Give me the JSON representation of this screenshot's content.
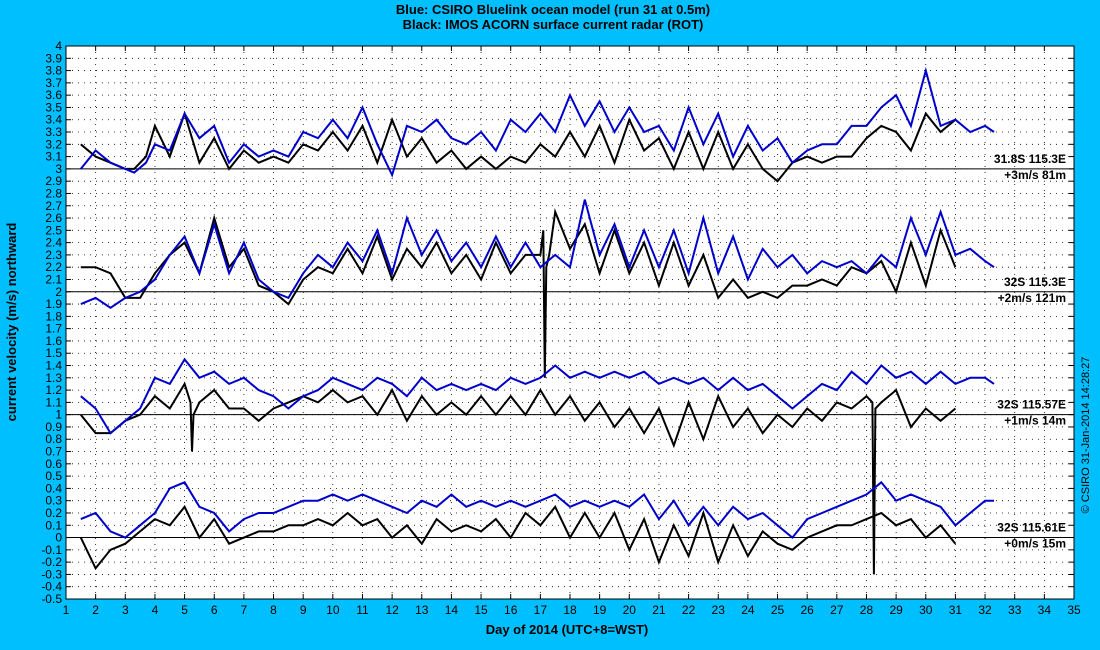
{
  "chart_data": {
    "type": "line",
    "title": "Blue: CSIRO Bluelink ocean model (run 31 at 0.5m)",
    "subtitle": "Black: IMOS ACORN surface current radar (ROT)",
    "xlabel": "Day of 2014 (UTC+8=WST)",
    "ylabel": "current velocity (m/s) northward",
    "credit": "© CSIRO 31-Jan-2014 14:28:27",
    "xlim": [
      1,
      35
    ],
    "ylim": [
      -0.5,
      4
    ],
    "xticks": [
      "1",
      "2",
      "3",
      "4",
      "5",
      "6",
      "7",
      "8",
      "9",
      "10",
      "11",
      "12",
      "13",
      "14",
      "15",
      "16",
      "17",
      "18",
      "19",
      "20",
      "21",
      "22",
      "23",
      "24",
      "25",
      "26",
      "27",
      "28",
      "29",
      "30",
      "31",
      "32",
      "33",
      "34",
      "35"
    ],
    "yticks": [
      "-0.5",
      "-0.4",
      "-0.3",
      "-0.2",
      "-0.1",
      "0",
      "0.1",
      "0.2",
      "0.3",
      "0.4",
      "0.5",
      "0.6",
      "0.7",
      "0.8",
      "0.9",
      "1",
      "1.1",
      "1.2",
      "1.3",
      "1.4",
      "1.5",
      "1.6",
      "1.7",
      "1.8",
      "1.9",
      "2",
      "2.1",
      "2.2",
      "2.3",
      "2.4",
      "2.5",
      "2.6",
      "2.7",
      "2.8",
      "2.9",
      "3",
      "3.1",
      "3.2",
      "3.3",
      "3.4",
      "3.5",
      "3.6",
      "3.7",
      "3.8",
      "3.9",
      "4"
    ],
    "grid": true,
    "colors": {
      "model": "#0000cc",
      "radar": "#000000",
      "background": "#00bfff"
    },
    "stations": [
      {
        "label": "31.8S 115.3E",
        "offset_label": "+3m/s 81m",
        "offset": 3,
        "model": {
          "x": [
            1.5,
            2,
            2.5,
            3,
            3.3,
            3.7,
            4,
            4.5,
            5,
            5.5,
            6,
            6.5,
            7,
            7.5,
            8,
            8.5,
            9,
            9.5,
            10,
            10.5,
            11,
            11.5,
            12,
            12.5,
            13,
            13.5,
            14,
            14.5,
            15,
            15.5,
            16,
            16.5,
            17,
            17.5,
            18,
            18.5,
            19,
            19.5,
            20,
            20.5,
            21,
            21.5,
            22,
            22.5,
            23,
            23.5,
            24,
            24.5,
            25,
            25.5,
            26,
            26.5,
            27,
            27.5,
            28,
            28.5,
            29,
            29.5,
            30,
            30.5,
            31,
            31.5,
            32,
            32.3
          ],
          "y": [
            3.0,
            3.15,
            3.05,
            3.0,
            2.97,
            3.05,
            3.2,
            3.15,
            3.45,
            3.25,
            3.35,
            3.05,
            3.2,
            3.1,
            3.15,
            3.1,
            3.3,
            3.25,
            3.4,
            3.25,
            3.5,
            3.2,
            2.95,
            3.35,
            3.3,
            3.4,
            3.25,
            3.2,
            3.3,
            3.15,
            3.4,
            3.3,
            3.45,
            3.3,
            3.6,
            3.35,
            3.55,
            3.3,
            3.5,
            3.3,
            3.35,
            3.15,
            3.5,
            3.2,
            3.45,
            3.1,
            3.35,
            3.15,
            3.25,
            3.05,
            3.15,
            3.2,
            3.2,
            3.35,
            3.35,
            3.5,
            3.6,
            3.35,
            3.8,
            3.35,
            3.4,
            3.3,
            3.35,
            3.3
          ]
        },
        "radar": {
          "x": [
            1.5,
            2,
            2.5,
            3,
            3.3,
            3.7,
            4,
            4.5,
            5,
            5.5,
            6,
            6.5,
            7,
            7.5,
            8,
            8.5,
            9,
            9.5,
            10,
            10.5,
            11,
            11.5,
            12,
            12.5,
            13,
            13.5,
            14,
            14.5,
            15,
            15.5,
            16,
            16.5,
            17,
            17.5,
            18,
            18.5,
            19,
            19.5,
            20,
            20.5,
            21,
            21.5,
            22,
            22.5,
            23,
            23.5,
            24,
            24.5,
            25,
            25.5,
            26,
            26.5,
            27,
            27.5,
            28,
            28.5,
            29,
            29.5,
            30,
            30.5,
            31
          ],
          "y": [
            3.2,
            3.1,
            3.05,
            3.0,
            3.0,
            3.1,
            3.35,
            3.1,
            3.45,
            3.05,
            3.25,
            3.0,
            3.15,
            3.05,
            3.1,
            3.05,
            3.2,
            3.15,
            3.3,
            3.15,
            3.35,
            3.05,
            3.4,
            3.1,
            3.25,
            3.05,
            3.15,
            3.0,
            3.1,
            3.0,
            3.1,
            3.05,
            3.2,
            3.1,
            3.3,
            3.1,
            3.35,
            3.05,
            3.4,
            3.15,
            3.25,
            3.0,
            3.3,
            3.0,
            3.3,
            3.0,
            3.2,
            3.0,
            2.9,
            3.05,
            3.1,
            3.05,
            3.1,
            3.1,
            3.25,
            3.35,
            3.3,
            3.15,
            3.45,
            3.3,
            3.4
          ]
        }
      },
      {
        "label": "32S 115.3E",
        "offset_label": "+2m/s 121m",
        "offset": 2,
        "model": {
          "x": [
            1.5,
            2,
            2.5,
            3,
            3.5,
            4,
            4.5,
            5,
            5.5,
            6,
            6.5,
            7,
            7.5,
            8,
            8.5,
            9,
            9.5,
            10,
            10.5,
            11,
            11.5,
            12,
            12.5,
            13,
            13.5,
            14,
            14.5,
            15,
            15.5,
            16,
            16.5,
            17,
            17.5,
            18,
            18.5,
            19,
            19.5,
            20,
            20.5,
            21,
            21.5,
            22,
            22.5,
            23,
            23.5,
            24,
            24.5,
            25,
            25.5,
            26,
            26.5,
            27,
            27.5,
            28,
            28.5,
            29,
            29.5,
            30,
            30.5,
            31,
            31.5,
            32,
            32.3
          ],
          "y": [
            1.9,
            1.95,
            1.87,
            1.95,
            2.0,
            2.1,
            2.3,
            2.45,
            2.15,
            2.55,
            2.15,
            2.4,
            2.1,
            2.0,
            1.95,
            2.15,
            2.3,
            2.2,
            2.4,
            2.25,
            2.5,
            2.15,
            2.6,
            2.3,
            2.5,
            2.25,
            2.4,
            2.2,
            2.45,
            2.2,
            2.4,
            2.2,
            2.3,
            2.2,
            2.75,
            2.3,
            2.55,
            2.2,
            2.5,
            2.2,
            2.5,
            2.15,
            2.6,
            2.15,
            2.45,
            2.1,
            2.35,
            2.2,
            2.3,
            2.15,
            2.25,
            2.2,
            2.25,
            2.15,
            2.3,
            2.2,
            2.6,
            2.3,
            2.65,
            2.3,
            2.35,
            2.25,
            2.2
          ]
        },
        "radar": {
          "x": [
            1.5,
            2,
            2.5,
            3,
            3.5,
            4,
            4.5,
            5,
            5.5,
            6,
            6.5,
            7,
            7.5,
            8,
            8.5,
            9,
            9.5,
            10,
            10.5,
            11,
            11.5,
            12,
            12.5,
            13,
            13.5,
            14,
            14.5,
            15,
            15.5,
            16,
            16.5,
            17,
            17.1,
            17.15,
            17.2,
            17.3,
            17.5,
            18,
            18.5,
            19,
            19.5,
            20,
            20.5,
            21,
            21.5,
            22,
            22.5,
            23,
            23.5,
            24,
            24.5,
            25,
            25.5,
            26,
            26.5,
            27,
            27.5,
            28,
            28.5,
            29,
            29.5,
            30,
            30.5,
            31
          ],
          "y": [
            2.2,
            2.2,
            2.15,
            1.95,
            1.95,
            2.15,
            2.3,
            2.4,
            2.15,
            2.6,
            2.2,
            2.35,
            2.05,
            2.0,
            1.9,
            2.1,
            2.2,
            2.15,
            2.35,
            2.15,
            2.45,
            2.1,
            2.35,
            2.2,
            2.4,
            2.15,
            2.3,
            2.1,
            2.4,
            2.15,
            2.3,
            2.3,
            2.5,
            1.3,
            2.2,
            2.3,
            2.65,
            2.35,
            2.55,
            2.15,
            2.5,
            2.15,
            2.4,
            2.05,
            2.4,
            2.05,
            2.3,
            1.95,
            2.1,
            1.95,
            2.0,
            1.95,
            2.05,
            2.05,
            2.1,
            2.05,
            2.2,
            2.15,
            2.25,
            2.0,
            2.4,
            2.05,
            2.5,
            2.2
          ]
        }
      },
      {
        "label": "32S 115.57E",
        "offset_label": "+1m/s 14m",
        "offset": 1,
        "model": {
          "x": [
            1.5,
            2,
            2.5,
            3,
            3.5,
            4,
            4.5,
            5,
            5.5,
            6,
            6.5,
            7,
            7.5,
            8,
            8.5,
            9,
            9.5,
            10,
            10.5,
            11,
            11.5,
            12,
            12.5,
            13,
            13.5,
            14,
            14.5,
            15,
            15.5,
            16,
            16.5,
            17,
            17.5,
            18,
            18.5,
            19,
            19.5,
            20,
            20.5,
            21,
            21.5,
            22,
            22.5,
            23,
            23.5,
            24,
            24.5,
            25,
            25.5,
            26,
            26.5,
            27,
            27.5,
            28,
            28.5,
            29,
            29.5,
            30,
            30.5,
            31,
            31.5,
            32,
            32.3
          ],
          "y": [
            1.15,
            1.05,
            0.85,
            0.95,
            1.05,
            1.3,
            1.25,
            1.45,
            1.3,
            1.35,
            1.25,
            1.3,
            1.2,
            1.15,
            1.05,
            1.15,
            1.2,
            1.3,
            1.25,
            1.2,
            1.3,
            1.25,
            1.15,
            1.3,
            1.2,
            1.25,
            1.2,
            1.25,
            1.2,
            1.3,
            1.25,
            1.3,
            1.4,
            1.3,
            1.35,
            1.3,
            1.35,
            1.3,
            1.35,
            1.25,
            1.3,
            1.25,
            1.3,
            1.2,
            1.3,
            1.2,
            1.25,
            1.15,
            1.05,
            1.15,
            1.25,
            1.2,
            1.35,
            1.25,
            1.4,
            1.3,
            1.35,
            1.25,
            1.35,
            1.25,
            1.3,
            1.3,
            1.25
          ]
        },
        "radar": {
          "x": [
            1.5,
            2,
            2.5,
            3,
            3.5,
            4,
            4.5,
            5,
            5.2,
            5.25,
            5.3,
            5.5,
            6,
            6.5,
            7,
            7.5,
            8,
            8.5,
            9,
            9.5,
            10,
            10.5,
            11,
            11.5,
            12,
            12.5,
            13,
            13.5,
            14,
            14.5,
            15,
            15.5,
            16,
            16.5,
            17,
            17.5,
            18,
            18.5,
            19,
            19.5,
            20,
            20.5,
            21,
            21.5,
            22,
            22.5,
            23,
            23.5,
            24,
            24.5,
            25,
            25.5,
            26,
            26.5,
            27,
            27.5,
            28,
            28.2,
            28.25,
            28.3,
            28.5,
            29,
            29.5,
            30,
            30.5,
            31
          ],
          "y": [
            1.0,
            0.85,
            0.85,
            0.95,
            1.0,
            1.15,
            1.05,
            1.25,
            1.1,
            0.7,
            1.0,
            1.1,
            1.2,
            1.05,
            1.05,
            0.95,
            1.05,
            1.1,
            1.15,
            1.1,
            1.2,
            1.1,
            1.15,
            1.0,
            1.2,
            0.95,
            1.15,
            1.0,
            1.1,
            1.0,
            1.15,
            1.0,
            1.15,
            1.0,
            1.2,
            1.0,
            1.15,
            0.95,
            1.1,
            0.9,
            1.05,
            0.85,
            1.05,
            0.75,
            1.1,
            0.8,
            1.15,
            0.9,
            1.05,
            0.85,
            1.0,
            0.9,
            1.05,
            0.95,
            1.1,
            1.05,
            1.15,
            1.1,
            -0.3,
            1.05,
            1.1,
            1.2,
            0.9,
            1.05,
            0.95,
            1.05
          ]
        }
      },
      {
        "label": "32S 115.61E",
        "offset_label": "+0m/s 15m",
        "offset": 0,
        "model": {
          "x": [
            1.5,
            2,
            2.5,
            3,
            3.5,
            4,
            4.5,
            5,
            5.5,
            6,
            6.5,
            7,
            7.5,
            8,
            8.5,
            9,
            9.5,
            10,
            10.5,
            11,
            11.5,
            12,
            12.5,
            13,
            13.5,
            14,
            14.5,
            15,
            15.5,
            16,
            16.5,
            17,
            17.5,
            18,
            18.5,
            19,
            19.5,
            20,
            20.5,
            21,
            21.5,
            22,
            22.5,
            23,
            23.5,
            24,
            24.5,
            25,
            25.5,
            26,
            26.5,
            27,
            27.5,
            28,
            28.5,
            29,
            29.5,
            30,
            30.5,
            31,
            31.5,
            32,
            32.3
          ],
          "y": [
            0.15,
            0.2,
            0.05,
            0.0,
            0.1,
            0.2,
            0.4,
            0.45,
            0.25,
            0.2,
            0.05,
            0.15,
            0.2,
            0.2,
            0.25,
            0.3,
            0.3,
            0.35,
            0.3,
            0.35,
            0.3,
            0.25,
            0.2,
            0.3,
            0.25,
            0.35,
            0.25,
            0.3,
            0.25,
            0.3,
            0.25,
            0.3,
            0.35,
            0.25,
            0.3,
            0.25,
            0.3,
            0.25,
            0.35,
            0.15,
            0.3,
            0.1,
            0.25,
            0.1,
            0.25,
            0.15,
            0.2,
            0.1,
            0.0,
            0.15,
            0.2,
            0.25,
            0.3,
            0.35,
            0.45,
            0.3,
            0.35,
            0.3,
            0.25,
            0.1,
            0.2,
            0.3,
            0.3
          ]
        },
        "radar": {
          "x": [
            1.5,
            2,
            2.5,
            3,
            3.5,
            4,
            4.5,
            5,
            5.5,
            6,
            6.5,
            7,
            7.5,
            8,
            8.5,
            9,
            9.5,
            10,
            10.5,
            11,
            11.5,
            12,
            12.5,
            13,
            13.5,
            14,
            14.5,
            15,
            15.5,
            16,
            16.5,
            17,
            17.5,
            18,
            18.5,
            19,
            19.5,
            20,
            20.5,
            21,
            21.5,
            22,
            22.5,
            23,
            23.5,
            24,
            24.5,
            25,
            25.5,
            26,
            26.5,
            27,
            27.5,
            28,
            28.5,
            29,
            29.5,
            30,
            30.5,
            31
          ],
          "y": [
            0.0,
            -0.25,
            -0.1,
            -0.05,
            0.05,
            0.15,
            0.1,
            0.25,
            0.0,
            0.15,
            -0.05,
            0.0,
            0.05,
            0.05,
            0.1,
            0.1,
            0.15,
            0.1,
            0.2,
            0.1,
            0.15,
            0.0,
            0.1,
            -0.05,
            0.15,
            0.05,
            0.1,
            0.05,
            0.15,
            0.0,
            0.2,
            0.1,
            0.25,
            0.0,
            0.2,
            0.0,
            0.2,
            -0.1,
            0.15,
            -0.2,
            0.1,
            -0.15,
            0.2,
            -0.2,
            0.1,
            -0.15,
            0.05,
            -0.05,
            -0.1,
            0.0,
            0.05,
            0.1,
            0.1,
            0.15,
            0.2,
            0.1,
            0.15,
            0.0,
            0.1,
            -0.05
          ]
        }
      }
    ]
  }
}
